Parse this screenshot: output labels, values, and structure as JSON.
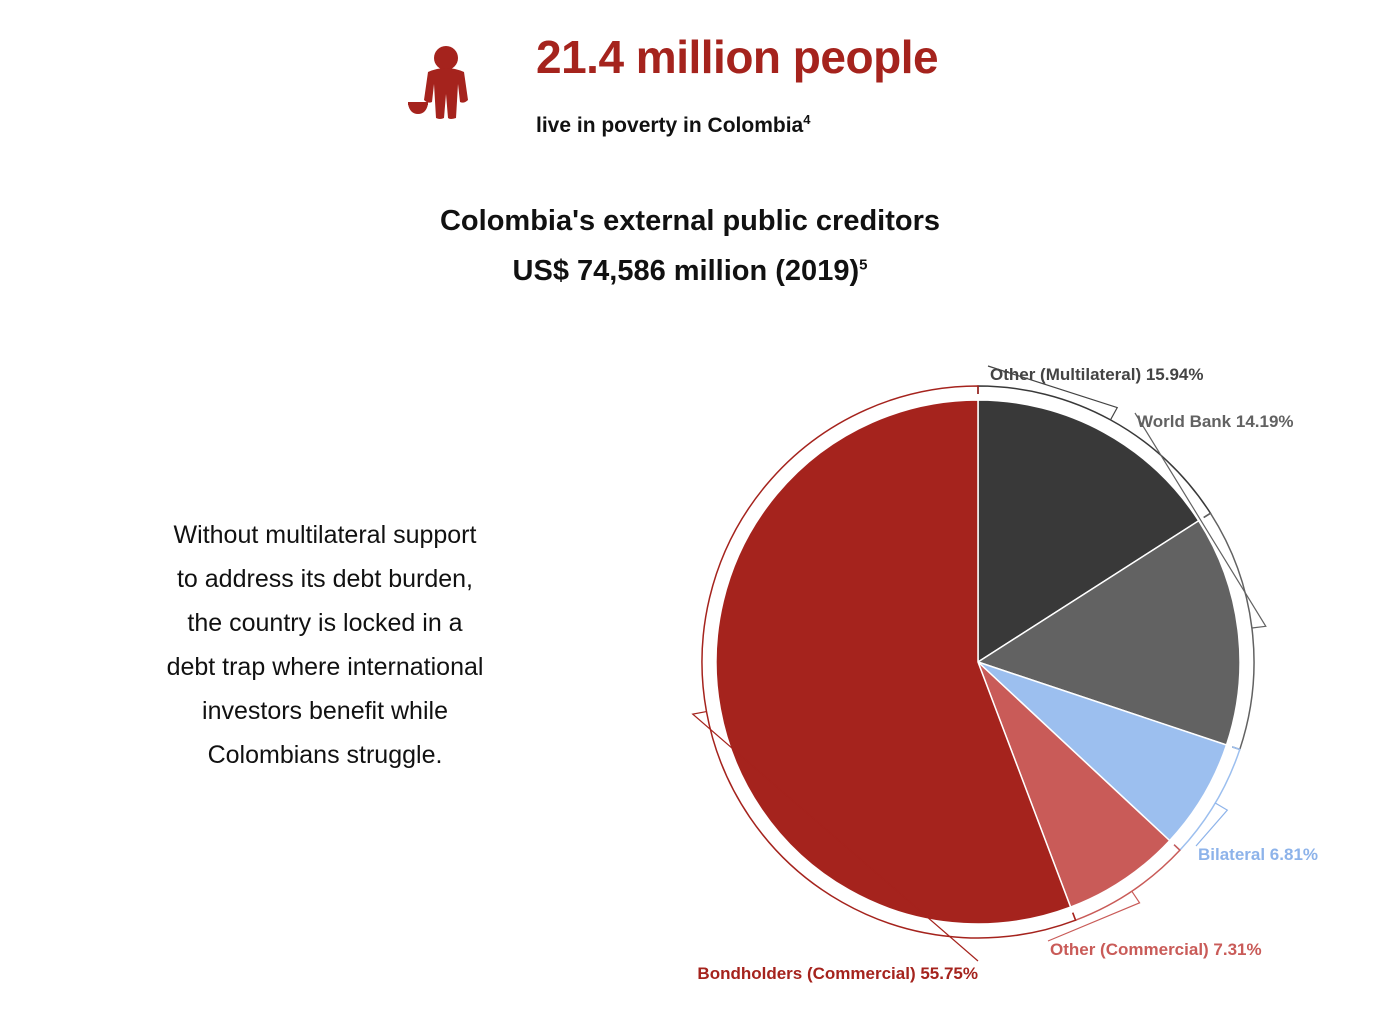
{
  "header": {
    "headline": "21.4 million people",
    "subline": "live in poverty in Colombia",
    "subline_note": "4",
    "icon": "person-begging-icon",
    "accent_color": "#a5231d"
  },
  "body_text": {
    "lines": [
      "Without multilateral support",
      "to address its debt burden,",
      "the country is locked in a",
      "debt trap where international",
      "investors benefit while",
      "Colombians struggle."
    ]
  },
  "chart_data": {
    "type": "pie",
    "title": "Colombia's external public creditors",
    "subtitle": "US$ 74,586 million (2019)",
    "subtitle_note": "5",
    "slices": [
      {
        "label": "Other (Multilateral)",
        "value": 15.94,
        "display": "15.94%",
        "color": "#393939",
        "label_color": "#444444"
      },
      {
        "label": "World Bank",
        "value": 14.19,
        "display": "14.19%",
        "color": "#626262",
        "label_color": "#626262"
      },
      {
        "label": "Bilateral",
        "value": 6.81,
        "display": "6.81%",
        "color": "#9cbfef",
        "label_color": "#8db3ea"
      },
      {
        "label": "Other (Commercial)",
        "value": 7.31,
        "display": "7.31%",
        "color": "#c95b58",
        "label_color": "#c95b58"
      },
      {
        "label": "Bondholders (Commercial)",
        "value": 55.75,
        "display": "55.75%",
        "color": "#a5231d",
        "label_color": "#a5231d"
      }
    ]
  }
}
